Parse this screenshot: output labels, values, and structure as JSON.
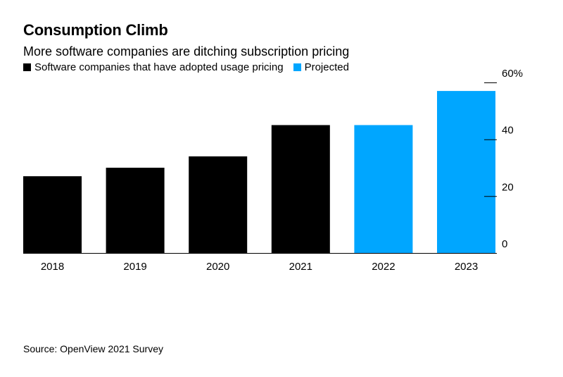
{
  "title": "Consumption Climb",
  "subtitle": "More software companies are ditching subscription pricing",
  "legend": [
    {
      "label": "Software companies that have adopted usage pricing",
      "color": "#000000"
    },
    {
      "label": "Projected",
      "color": "#00a6ff"
    }
  ],
  "source": "Source: OpenView 2021 Survey",
  "chart_data": {
    "type": "bar",
    "title": "Consumption Climb",
    "xlabel": "",
    "ylabel": "",
    "categories": [
      "2018",
      "2019",
      "2020",
      "2021",
      "2022",
      "2023"
    ],
    "values": [
      27,
      30,
      34,
      45,
      45,
      57
    ],
    "series_by_bar": [
      "Software companies that have adopted usage pricing",
      "Software companies that have adopted usage pricing",
      "Software companies that have adopted usage pricing",
      "Software companies that have adopted usage pricing",
      "Projected",
      "Projected"
    ],
    "colors": [
      "#000000",
      "#000000",
      "#000000",
      "#000000",
      "#00a6ff",
      "#00a6ff"
    ],
    "ylim": [
      0,
      60
    ],
    "yticks": [
      0,
      20,
      40,
      60
    ],
    "ytick_labels": [
      "0",
      "20",
      "40",
      "60%"
    ],
    "y_axis_side": "right",
    "grid": false
  }
}
